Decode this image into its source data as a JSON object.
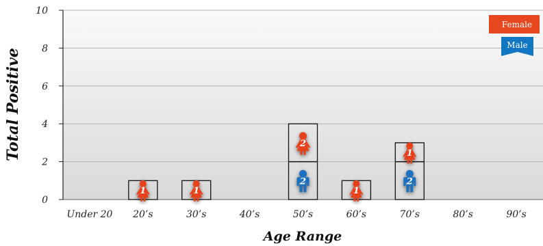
{
  "chart_data": {
    "type": "bar",
    "stacked": true,
    "categories": [
      "Under 20",
      "20’s",
      "30’s",
      "40’s",
      "50’s",
      "60’s",
      "70’s",
      "80’s",
      "90’s"
    ],
    "series": [
      {
        "name": "Male",
        "color": "#1a6fc0",
        "icon": "male-figure-icon",
        "values": [
          0,
          0,
          0,
          0,
          2,
          0,
          2,
          0,
          0
        ]
      },
      {
        "name": "Female",
        "color": "#e8421c",
        "icon": "female-figure-icon",
        "values": [
          0,
          1,
          1,
          0,
          2,
          1,
          1,
          0,
          0
        ]
      }
    ],
    "xlabel": "Age Range",
    "ylabel": "Total Positive",
    "ylim": [
      0,
      10
    ],
    "yticks": [
      "0",
      "2",
      "4",
      "6",
      "8",
      "10"
    ],
    "grid": true,
    "legend_position": "top-right",
    "legend": {
      "female": "Female",
      "male": "Male",
      "female_color": "#e8461e",
      "male_color": "#1177c2"
    }
  }
}
